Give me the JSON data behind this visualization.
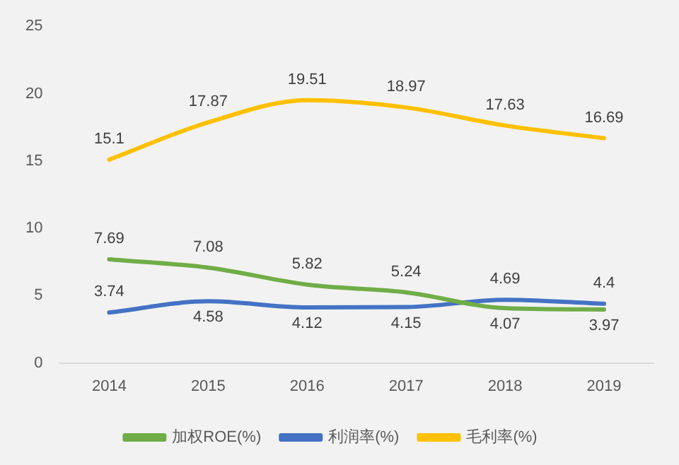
{
  "chart_data": {
    "type": "line",
    "categories": [
      "2014",
      "2015",
      "2016",
      "2017",
      "2018",
      "2019"
    ],
    "series": [
      {
        "name": "加权ROE(%)",
        "color": "#70ad47",
        "values": [
          7.69,
          7.08,
          5.82,
          5.24,
          4.07,
          3.97
        ]
      },
      {
        "name": "利润率(%)",
        "color": "#4472c4",
        "values": [
          3.74,
          4.58,
          4.12,
          4.15,
          4.69,
          4.4
        ]
      },
      {
        "name": "毛利率(%)",
        "color": "#ffc000",
        "values": [
          15.1,
          17.87,
          19.51,
          18.97,
          17.63,
          16.69
        ]
      }
    ],
    "ylim": [
      0,
      25
    ],
    "yticks": [
      0,
      5,
      10,
      15,
      20,
      25
    ],
    "grid": false,
    "legend": "bottom",
    "marker": "none",
    "line_style": "solid",
    "data_labels": true
  }
}
